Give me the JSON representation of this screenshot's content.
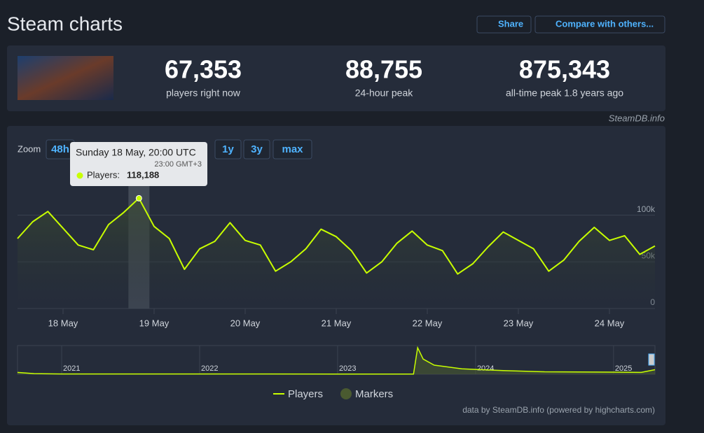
{
  "header": {
    "title": "Steam charts",
    "buttons": [
      "Share",
      "Compare with others..."
    ]
  },
  "stats": [
    {
      "value": "67,353",
      "label": "players right now"
    },
    {
      "value": "88,755",
      "label": "24-hour peak"
    },
    {
      "value": "875,343",
      "label": "all-time peak 1.8 years ago"
    }
  ],
  "source": "SteamDB.info",
  "chart_data": {
    "type": "line",
    "zoom_label": "Zoom",
    "zoom": [
      "48h",
      "1y",
      "3y",
      "max"
    ],
    "x": [
      "17 May 12:00",
      "17 May 16:00",
      "17 May 20:00",
      "18 May 00:00",
      "18 May 04:00",
      "18 May 08:00",
      "18 May 12:00",
      "18 May 16:00",
      "18 May 20:00",
      "19 May 00:00",
      "19 May 04:00",
      "19 May 08:00",
      "19 May 12:00",
      "19 May 16:00",
      "19 May 20:00",
      "20 May 00:00",
      "20 May 04:00",
      "20 May 08:00",
      "20 May 12:00",
      "20 May 16:00",
      "20 May 20:00",
      "21 May 00:00",
      "21 May 04:00",
      "21 May 08:00",
      "21 May 12:00",
      "21 May 16:00",
      "21 May 20:00",
      "22 May 00:00",
      "22 May 04:00",
      "22 May 08:00",
      "22 May 12:00",
      "22 May 16:00",
      "22 May 20:00",
      "23 May 00:00",
      "23 May 04:00",
      "23 May 08:00",
      "23 May 12:00",
      "23 May 16:00",
      "23 May 20:00",
      "24 May 00:00",
      "24 May 04:00",
      "24 May 08:00",
      "24 May 12:00"
    ],
    "xticks": [
      "18 May",
      "19 May",
      "20 May",
      "21 May",
      "22 May",
      "23 May",
      "24 May"
    ],
    "series": [
      {
        "name": "Players",
        "color": "#c8ff00",
        "values": [
          75000,
          93000,
          104000,
          86000,
          68000,
          63000,
          90000,
          103000,
          118188,
          88000,
          75000,
          42000,
          64000,
          72000,
          92000,
          73000,
          68000,
          40000,
          50000,
          64000,
          85000,
          77000,
          62000,
          38000,
          50000,
          70000,
          83000,
          68000,
          62000,
          37000,
          48000,
          66000,
          82000,
          73000,
          64000,
          40000,
          52000,
          72000,
          87000,
          73000,
          78000,
          58000,
          67000
        ]
      }
    ],
    "ylim": [
      0,
      150000
    ],
    "yticks": [
      {
        "value": 0,
        "label": "0"
      },
      {
        "value": 50000,
        "label": "50k"
      },
      {
        "value": 100000,
        "label": "100k"
      }
    ],
    "grid": true,
    "tooltip": {
      "date": "Sunday 18 May, 20:00 UTC",
      "local": "23:00 GMT+3",
      "label": "Players:",
      "value": "118,188"
    },
    "markers_legend": "Markers",
    "credit": "data by SteamDB.info (powered by highcharts.com)",
    "navigator": {
      "type": "area",
      "x": [
        2020.68,
        2020.8,
        2021.0,
        2022.0,
        2023.0,
        2023.55,
        2023.58,
        2023.62,
        2023.7,
        2023.9,
        2024.0,
        2024.2,
        2024.5,
        2025.0,
        2025.2,
        2025.3
      ],
      "values": [
        60000,
        20000,
        10000,
        8000,
        7000,
        5000,
        875343,
        500000,
        300000,
        180000,
        160000,
        120000,
        80000,
        70000,
        60000,
        150000
      ],
      "xlim": [
        2020.68,
        2025.3
      ],
      "ylim": [
        0,
        900000
      ],
      "xticks": [
        2021,
        2022,
        2023,
        2024,
        2025
      ]
    }
  }
}
